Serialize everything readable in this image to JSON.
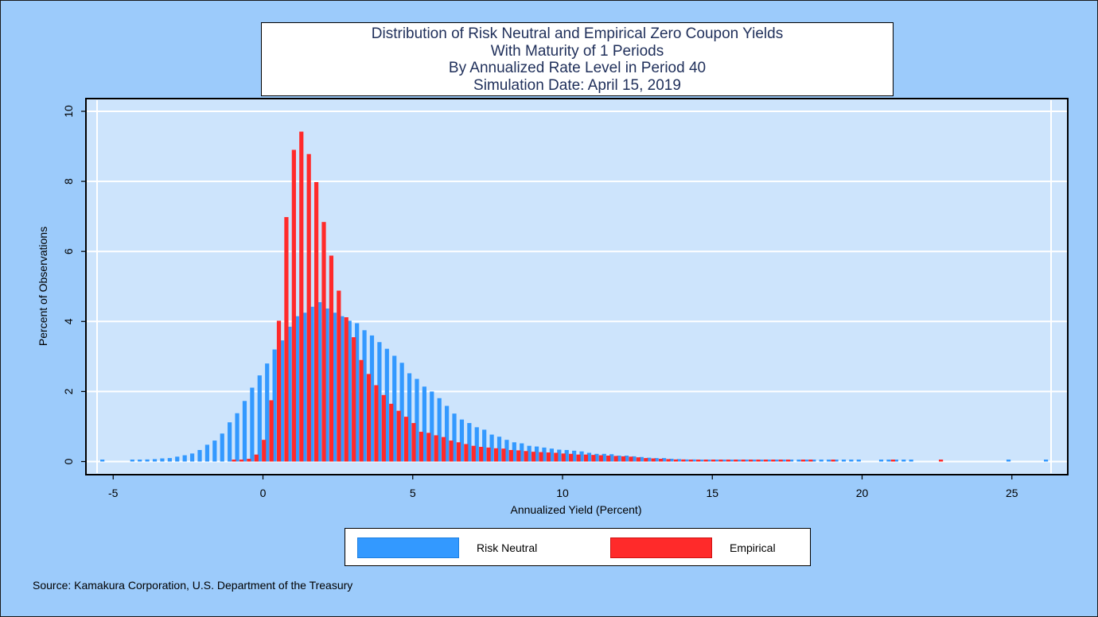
{
  "colors": {
    "background": "#9ccbfb",
    "plot_area": "#cde4fc",
    "risk_neutral": "#3399ff",
    "risk_neutral_dark": "#1d7fe0",
    "empirical": "#ff2a2a",
    "empirical_dark": "#cc1111",
    "overlap": "#5a3fb0"
  },
  "title_lines": [
    "Distribution of Risk Neutral and Empirical Zero Coupon Yields",
    "With Maturity of 1 Periods",
    "By Annualized Rate Level in Period 40",
    "Simulation Date: April 15, 2019"
  ],
  "source": "Source: Kamakura Corporation, U.S. Department of the Treasury",
  "chart_data": {
    "type": "bar",
    "title": "Distribution of Risk Neutral and Empirical Zero Coupon Yields With Maturity of 1 Periods By Annualized Rate Level in Period 40 Simulation Date: April 15, 2019",
    "xlabel": "Annualized Yield (Percent)",
    "ylabel": "Percent of Observations",
    "xlim": [
      -5.3,
      27.5
    ],
    "ylim": [
      0,
      10
    ],
    "xticks": [
      -5,
      0,
      5,
      10,
      15,
      20,
      25
    ],
    "xtick_labels": [
      "-5",
      "0",
      "5",
      "10",
      "15",
      "20",
      "25"
    ],
    "yticks": [
      0,
      2,
      4,
      6,
      8,
      10
    ],
    "ytick_labels": [
      "0",
      "2",
      "4",
      "6",
      "8",
      "10"
    ],
    "grid": true,
    "legend_position": "bottom",
    "series": [
      {
        "name": "Risk Neutral",
        "x": [
          -5.25,
          -4.25,
          -4.0,
          -3.75,
          -3.5,
          -3.25,
          -3.0,
          -2.75,
          -2.5,
          -2.25,
          -2.0,
          -1.75,
          -1.5,
          -1.25,
          -1.0,
          -0.75,
          -0.5,
          -0.25,
          0.0,
          0.25,
          0.5,
          0.75,
          1.0,
          1.25,
          1.5,
          1.75,
          2.0,
          2.25,
          2.5,
          2.75,
          3.0,
          3.25,
          3.5,
          3.75,
          4.0,
          4.25,
          4.5,
          4.75,
          5.0,
          5.25,
          5.5,
          5.75,
          6.0,
          6.25,
          6.5,
          6.75,
          7.0,
          7.25,
          7.5,
          7.75,
          8.0,
          8.25,
          8.5,
          8.75,
          9.0,
          9.25,
          9.5,
          9.75,
          10.0,
          10.25,
          10.5,
          10.75,
          11.0,
          11.25,
          11.5,
          11.75,
          12.0,
          12.25,
          12.5,
          12.75,
          13.0,
          13.25,
          13.5,
          13.75,
          14.0,
          14.25,
          14.5,
          14.75,
          15.0,
          15.25,
          15.5,
          15.75,
          16.0,
          16.25,
          16.5,
          16.75,
          17.0,
          17.25,
          17.5,
          17.75,
          18.0,
          18.25,
          18.5,
          18.75,
          19.0,
          19.25,
          19.5,
          19.75,
          20.0,
          20.75,
          21.0,
          21.25,
          21.5,
          21.75,
          25.0,
          26.25
        ],
        "values": [
          0.05,
          0.05,
          0.05,
          0.06,
          0.07,
          0.09,
          0.1,
          0.14,
          0.18,
          0.23,
          0.33,
          0.48,
          0.6,
          0.8,
          1.12,
          1.38,
          1.73,
          2.11,
          2.46,
          2.8,
          3.2,
          3.46,
          3.85,
          4.15,
          4.25,
          4.42,
          4.55,
          4.37,
          4.25,
          4.15,
          4.02,
          3.95,
          3.75,
          3.6,
          3.41,
          3.22,
          3.02,
          2.82,
          2.52,
          2.36,
          2.14,
          2.0,
          1.81,
          1.59,
          1.37,
          1.2,
          1.1,
          0.98,
          0.91,
          0.77,
          0.71,
          0.62,
          0.55,
          0.52,
          0.45,
          0.43,
          0.4,
          0.37,
          0.34,
          0.33,
          0.31,
          0.29,
          0.25,
          0.22,
          0.22,
          0.21,
          0.17,
          0.17,
          0.15,
          0.13,
          0.11,
          0.1,
          0.1,
          0.08,
          0.07,
          0.06,
          0.06,
          0.05,
          0.05,
          0.05,
          0.05,
          0.05,
          0.05,
          0.05,
          0.05,
          0.05,
          0.05,
          0.05,
          0.05,
          0.05,
          0.05,
          0.05,
          0.05,
          0.05,
          0.05,
          0.05,
          0.05,
          0.05,
          0.05,
          0.05,
          0.05,
          0.05,
          0.05,
          0.05,
          0.05,
          0.05
        ]
      },
      {
        "name": "Empirical",
        "x": [
          -1.0,
          -0.75,
          -0.5,
          -0.25,
          0.0,
          0.25,
          0.5,
          0.75,
          1.0,
          1.25,
          1.5,
          1.75,
          2.0,
          2.25,
          2.5,
          2.75,
          3.0,
          3.25,
          3.5,
          3.75,
          4.0,
          4.25,
          4.5,
          4.75,
          5.0,
          5.25,
          5.5,
          5.75,
          6.0,
          6.25,
          6.5,
          6.75,
          7.0,
          7.25,
          7.5,
          7.75,
          8.0,
          8.25,
          8.5,
          8.75,
          9.0,
          9.25,
          9.5,
          9.75,
          10.0,
          10.25,
          10.5,
          10.75,
          11.0,
          11.25,
          11.5,
          11.75,
          12.0,
          12.25,
          12.5,
          12.75,
          13.0,
          13.25,
          13.5,
          13.75,
          14.0,
          14.25,
          14.5,
          14.75,
          15.0,
          15.25,
          15.5,
          15.75,
          16.0,
          16.25,
          16.5,
          16.75,
          17.0,
          17.25,
          17.5,
          18.0,
          18.25,
          19.0,
          21.0,
          22.6
        ],
        "values": [
          0.05,
          0.05,
          0.08,
          0.2,
          0.62,
          1.75,
          4.02,
          6.98,
          8.9,
          9.42,
          8.78,
          7.98,
          6.84,
          5.88,
          4.88,
          4.12,
          3.55,
          2.9,
          2.5,
          2.18,
          1.9,
          1.65,
          1.45,
          1.28,
          1.1,
          0.85,
          0.82,
          0.75,
          0.7,
          0.6,
          0.55,
          0.5,
          0.45,
          0.42,
          0.4,
          0.38,
          0.37,
          0.33,
          0.32,
          0.3,
          0.28,
          0.27,
          0.26,
          0.25,
          0.23,
          0.22,
          0.2,
          0.2,
          0.19,
          0.18,
          0.17,
          0.16,
          0.15,
          0.14,
          0.12,
          0.1,
          0.09,
          0.08,
          0.07,
          0.06,
          0.06,
          0.05,
          0.05,
          0.05,
          0.05,
          0.05,
          0.05,
          0.05,
          0.05,
          0.05,
          0.05,
          0.05,
          0.05,
          0.05,
          0.05,
          0.05,
          0.05,
          0.05,
          0.05,
          0.05
        ]
      }
    ]
  }
}
